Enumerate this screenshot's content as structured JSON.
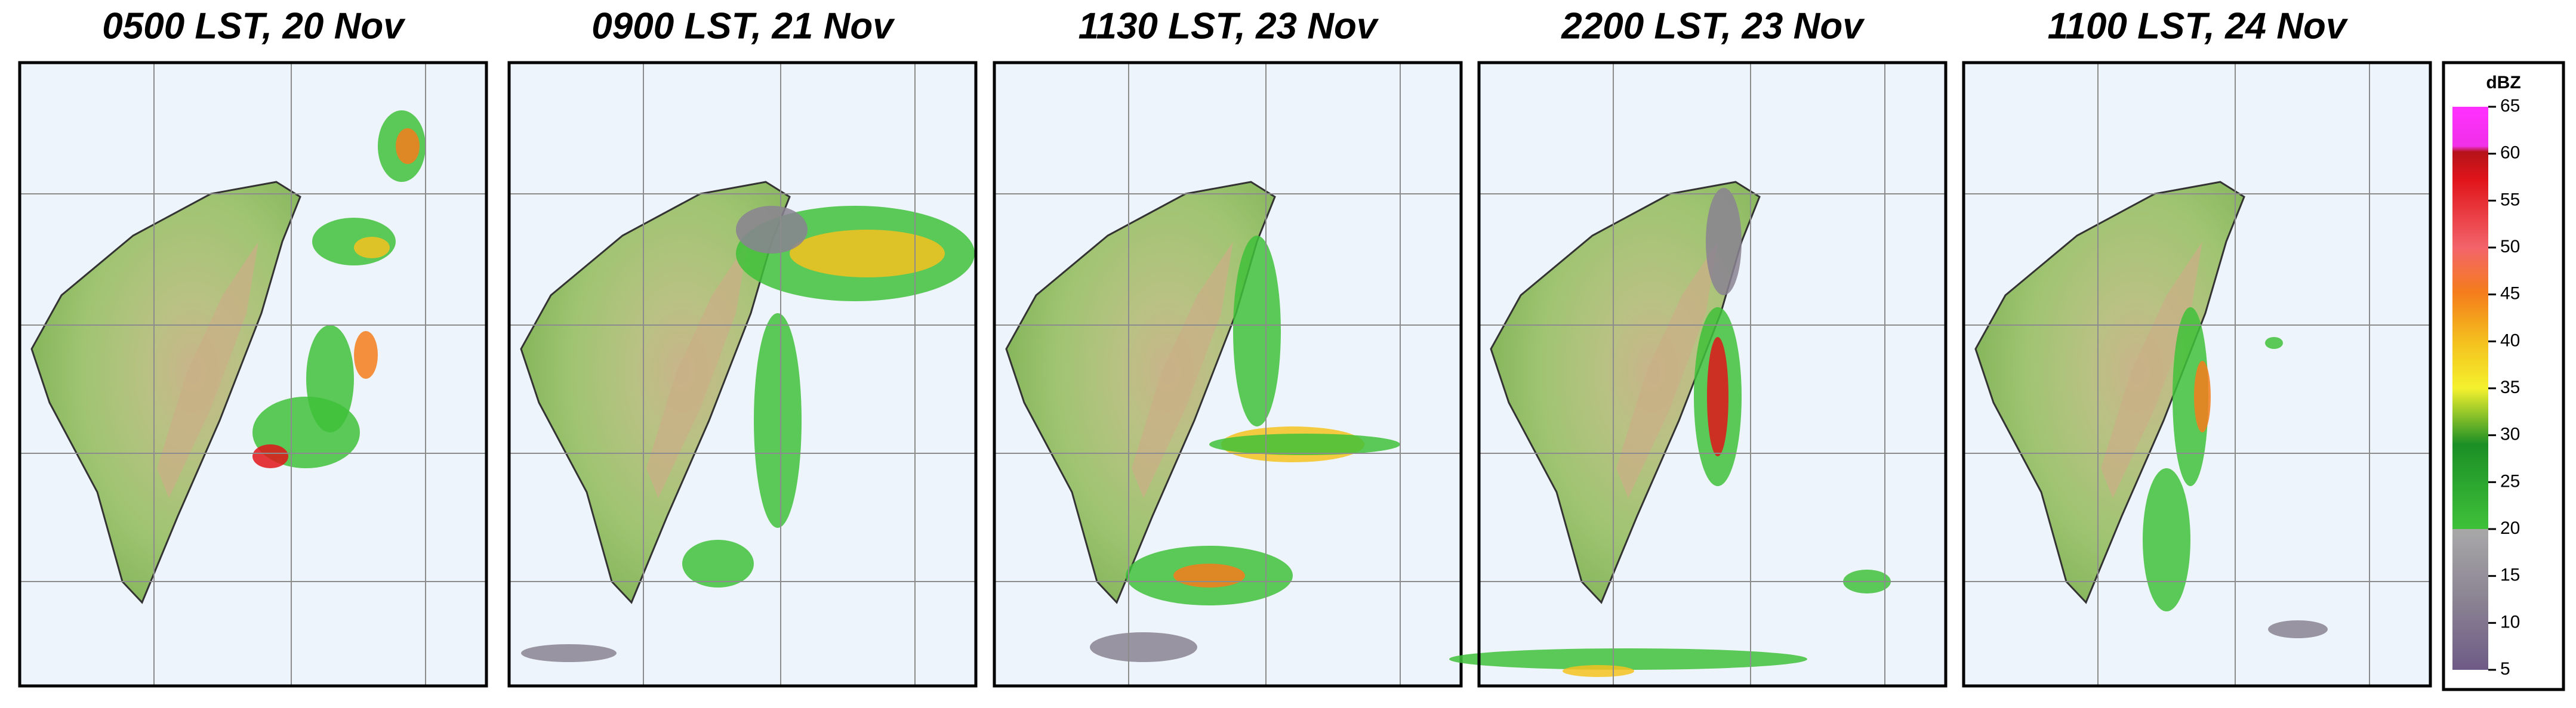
{
  "panels": [
    {
      "title": "0500 LST, 20 Nov"
    },
    {
      "title": "0900 LST, 21 Nov"
    },
    {
      "title": "1130 LST, 23 Nov"
    },
    {
      "title": "2200 LST, 23 Nov"
    },
    {
      "title": "1100 LST, 24 Nov"
    }
  ],
  "colorbar": {
    "label": "dBZ",
    "lim": [
      5,
      65
    ],
    "ticks": [
      5,
      10,
      15,
      20,
      25,
      30,
      35,
      40,
      45,
      50,
      55,
      60,
      65
    ]
  }
}
